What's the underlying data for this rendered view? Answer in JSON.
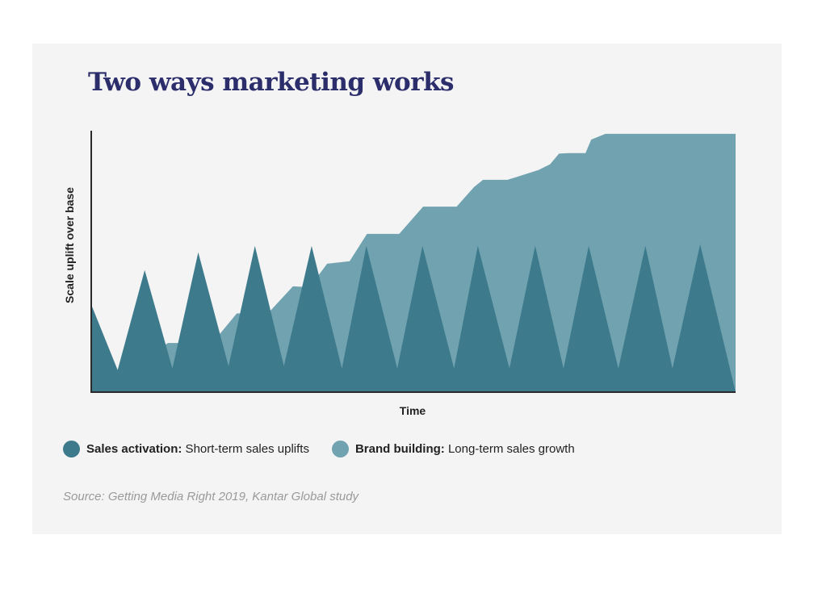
{
  "title": "Two ways marketing works",
  "source": "Source: Getting Media Right 2019, Kantar Global study",
  "legend": [
    {
      "name": "Sales activation:",
      "desc": " Short-term sales uplifts",
      "color": "#3d7a8c"
    },
    {
      "name": "Brand building:",
      "desc": " Long-term sales growth",
      "color": "#70a2b0"
    }
  ],
  "chart_data": {
    "type": "area",
    "title": "Two ways marketing works",
    "xlabel": "Time",
    "ylabel": "Scale uplift over base",
    "xlim": [
      0,
      100
    ],
    "ylim": [
      0,
      100
    ],
    "grid": false,
    "legend_position": "bottom",
    "series": [
      {
        "name": "Brand building",
        "color": "#70a2b0",
        "x": [
          0,
          11.9,
          18.8,
          22.6,
          27.3,
          31.3,
          33.9,
          36.6,
          40.1,
          42.8,
          47.8,
          51.5,
          56.7,
          59.4,
          60.8,
          64.6,
          69.4,
          71.2,
          72.6,
          74.1,
          76.7,
          77.6,
          79.8,
          100
        ],
        "y": [
          0,
          18.9,
          18.9,
          30.3,
          30.0,
          40.7,
          40.4,
          49.4,
          50.4,
          60.9,
          60.9,
          71.4,
          71.4,
          78.9,
          81.7,
          81.7,
          85.5,
          87.7,
          91.8,
          92.0,
          92.0,
          97.2,
          99.4,
          99.4
        ]
      },
      {
        "name": "Sales activation",
        "color": "#3d7a8c",
        "x": [
          0,
          4.1,
          8.3,
          12.6,
          16.6,
          21.3,
          25.4,
          29.9,
          34.2,
          38.9,
          42.7,
          47.5,
          51.4,
          56.3,
          60.0,
          64.9,
          68.9,
          73.3,
          77.2,
          81.8,
          86.0,
          90.2,
          94.5,
          100
        ],
        "y": [
          33.7,
          8.5,
          47.0,
          9.1,
          53.8,
          10.0,
          56.3,
          10.0,
          56.3,
          9.1,
          56.3,
          9.1,
          56.3,
          9.1,
          56.3,
          9.1,
          56.3,
          9.1,
          56.3,
          9.1,
          56.3,
          9.1,
          56.9,
          0
        ]
      }
    ]
  }
}
